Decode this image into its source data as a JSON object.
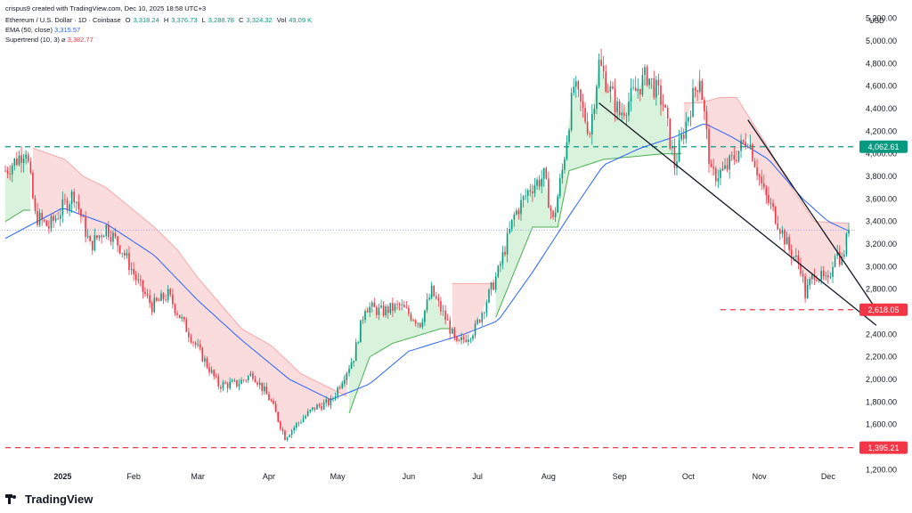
{
  "header": {
    "created_by": "crispus9 created with TradingView.com, Dec 10, 2025 18:58 UTC+3",
    "symbol": "Ethereum / U.S. Dollar · 1D · Coinbase",
    "open_label": "O",
    "open": "3,318.24",
    "high_label": "H",
    "high": "3,376.73",
    "low_label": "L",
    "low": "3,288.78",
    "close_label": "C",
    "close": "3,324.32",
    "vol_label": "Vol",
    "vol": "49.09 K",
    "ema_label": "EMA (50, close)",
    "ema_value": "3,315.57",
    "supertrend_label": "Supertrend (10, 3)",
    "supertrend_symbol": "⌀",
    "supertrend_value": "3,382.77"
  },
  "brand": {
    "name": "TradingView"
  },
  "colors": {
    "up": "#089981",
    "down": "#f23645",
    "ema": "#2962ff",
    "st_up_fill": "#d9f2dc",
    "st_down_fill": "#fbdcdc",
    "st_up_line": "#4caf50",
    "st_down_line": "#f7a7a7",
    "green_dashed": "#089981",
    "red_dashed": "#f23645",
    "trendline": "#131722",
    "last_price_line": "#6f8cff"
  },
  "chart_data": {
    "type": "candlestick",
    "currency_label": "USD",
    "ylim": [
      1100,
      5300
    ],
    "y_ticks": [
      1200,
      1400,
      1600,
      1800,
      2000,
      2200,
      2400,
      2600,
      2800,
      3000,
      3200,
      3400,
      3600,
      3800,
      4000,
      4200,
      4400,
      4600,
      4800,
      5000,
      5200
    ],
    "y_tick_labels": [
      "1,200.00",
      "1,400.00",
      "1,600.00",
      "1,800.00",
      "2,000.00",
      "2,200.00",
      "2,400.00",
      "2,600.00",
      "2,800.00",
      "3,000.00",
      "3,200.00",
      "3,400.00",
      "3,600.00",
      "3,800.00",
      "4,000.00",
      "4,200.00",
      "4,400.00",
      "4,600.00",
      "4,800.00",
      "5,000.00",
      "5,200.00"
    ],
    "x_labels": [
      {
        "date": "2025-01-01",
        "label": "2025"
      },
      {
        "date": "2025-02-01",
        "label": "Feb"
      },
      {
        "date": "2025-03-01",
        "label": "Mar"
      },
      {
        "date": "2025-04-01",
        "label": "Apr"
      },
      {
        "date": "2025-05-01",
        "label": "May"
      },
      {
        "date": "2025-06-01",
        "label": "Jun"
      },
      {
        "date": "2025-07-01",
        "label": "Jul"
      },
      {
        "date": "2025-08-01",
        "label": "Aug"
      },
      {
        "date": "2025-09-01",
        "label": "Sep"
      },
      {
        "date": "2025-10-01",
        "label": "Oct"
      },
      {
        "date": "2025-11-01",
        "label": "Nov"
      },
      {
        "date": "2025-12-01",
        "label": "Dec"
      }
    ],
    "first_date": "2024-12-07",
    "last_date": "2025-12-10",
    "close_path": [
      [
        "2024-12-07",
        3850
      ],
      [
        "2024-12-12",
        3950
      ],
      [
        "2024-12-16",
        4050
      ],
      [
        "2024-12-20",
        3450
      ],
      [
        "2024-12-26",
        3350
      ],
      [
        "2025-01-02",
        3550
      ],
      [
        "2025-01-06",
        3650
      ],
      [
        "2025-01-13",
        3180
      ],
      [
        "2025-01-20",
        3350
      ],
      [
        "2025-01-27",
        3150
      ],
      [
        "2025-02-03",
        2850
      ],
      [
        "2025-02-09",
        2650
      ],
      [
        "2025-02-16",
        2750
      ],
      [
        "2025-02-24",
        2450
      ],
      [
        "2025-03-03",
        2200
      ],
      [
        "2025-03-10",
        1950
      ],
      [
        "2025-03-18",
        1960
      ],
      [
        "2025-03-25",
        2050
      ],
      [
        "2025-04-02",
        1800
      ],
      [
        "2025-04-08",
        1490
      ],
      [
        "2025-04-14",
        1620
      ],
      [
        "2025-04-21",
        1750
      ],
      [
        "2025-04-28",
        1800
      ],
      [
        "2025-05-08",
        2200
      ],
      [
        "2025-05-13",
        2650
      ],
      [
        "2025-05-20",
        2600
      ],
      [
        "2025-05-28",
        2650
      ],
      [
        "2025-06-06",
        2500
      ],
      [
        "2025-06-11",
        2780
      ],
      [
        "2025-06-18",
        2500
      ],
      [
        "2025-06-22",
        2300
      ],
      [
        "2025-06-30",
        2450
      ],
      [
        "2025-07-10",
        2950
      ],
      [
        "2025-07-17",
        3450
      ],
      [
        "2025-07-24",
        3700
      ],
      [
        "2025-07-30",
        3800
      ],
      [
        "2025-08-03",
        3400
      ],
      [
        "2025-08-07",
        3850
      ],
      [
        "2025-08-12",
        4600
      ],
      [
        "2025-08-19",
        4200
      ],
      [
        "2025-08-23",
        4800
      ],
      [
        "2025-09-01",
        4350
      ],
      [
        "2025-09-13",
        4700
      ],
      [
        "2025-09-20",
        4450
      ],
      [
        "2025-09-25",
        3900
      ],
      [
        "2025-10-03",
        4500
      ],
      [
        "2025-10-06",
        4700
      ],
      [
        "2025-10-11",
        3800
      ],
      [
        "2025-10-17",
        3850
      ],
      [
        "2025-10-27",
        4150
      ],
      [
        "2025-11-03",
        3650
      ],
      [
        "2025-11-08",
        3450
      ],
      [
        "2025-11-14",
        3150
      ],
      [
        "2025-11-19",
        3000
      ],
      [
        "2025-11-21",
        2750
      ],
      [
        "2025-11-25",
        2950
      ],
      [
        "2025-12-01",
        2850
      ],
      [
        "2025-12-04",
        3150
      ],
      [
        "2025-12-07",
        3050
      ],
      [
        "2025-12-10",
        3324
      ]
    ],
    "series": [
      {
        "name": "Ethereum / U.S. Dollar",
        "kind": "candlestick",
        "last_close": 3324.32
      },
      {
        "name": "EMA (50, close)",
        "kind": "line",
        "points": [
          [
            "2024-12-07",
            3250
          ],
          [
            "2025-01-01",
            3520
          ],
          [
            "2025-01-20",
            3380
          ],
          [
            "2025-02-10",
            3100
          ],
          [
            "2025-03-01",
            2700
          ],
          [
            "2025-03-20",
            2350
          ],
          [
            "2025-04-10",
            2000
          ],
          [
            "2025-04-28",
            1820
          ],
          [
            "2025-05-15",
            1960
          ],
          [
            "2025-06-01",
            2250
          ],
          [
            "2025-06-25",
            2400
          ],
          [
            "2025-07-10",
            2520
          ],
          [
            "2025-07-25",
            2950
          ],
          [
            "2025-08-10",
            3450
          ],
          [
            "2025-08-25",
            3900
          ],
          [
            "2025-09-10",
            4050
          ],
          [
            "2025-09-25",
            4150
          ],
          [
            "2025-10-08",
            4270
          ],
          [
            "2025-10-20",
            4150
          ],
          [
            "2025-11-05",
            3950
          ],
          [
            "2025-11-20",
            3600
          ],
          [
            "2025-12-01",
            3400
          ],
          [
            "2025-12-10",
            3316
          ]
        ]
      },
      {
        "name": "Supertrend (10, 3)",
        "kind": "bands",
        "value": 3382.77,
        "segments": [
          {
            "dir": "up",
            "points": [
              [
                "2024-12-07",
                3400
              ],
              [
                "2024-12-15",
                3500
              ],
              [
                "2024-12-18",
                3500
              ]
            ]
          },
          {
            "dir": "down",
            "points": [
              [
                "2024-12-19",
                4050
              ],
              [
                "2025-01-02",
                3950
              ],
              [
                "2025-01-10",
                3800
              ],
              [
                "2025-01-20",
                3700
              ],
              [
                "2025-02-01",
                3500
              ],
              [
                "2025-02-10",
                3350
              ],
              [
                "2025-02-20",
                3150
              ],
              [
                "2025-03-01",
                2900
              ],
              [
                "2025-03-20",
                2450
              ],
              [
                "2025-04-02",
                2300
              ],
              [
                "2025-04-15",
                2050
              ],
              [
                "2025-05-05",
                1850
              ]
            ]
          },
          {
            "dir": "up",
            "points": [
              [
                "2025-05-06",
                1700
              ],
              [
                "2025-05-15",
                2200
              ],
              [
                "2025-05-25",
                2320
              ],
              [
                "2025-06-15",
                2450
              ],
              [
                "2025-06-19",
                2450
              ]
            ]
          },
          {
            "dir": "down",
            "points": [
              [
                "2025-06-20",
                2850
              ],
              [
                "2025-07-08",
                2850
              ]
            ]
          },
          {
            "dir": "up",
            "points": [
              [
                "2025-07-09",
                2550
              ],
              [
                "2025-07-18",
                3000
              ],
              [
                "2025-07-25",
                3350
              ],
              [
                "2025-08-05",
                3350
              ],
              [
                "2025-08-10",
                3850
              ],
              [
                "2025-08-25",
                3950
              ],
              [
                "2025-09-20",
                4000
              ],
              [
                "2025-09-28",
                4000
              ]
            ]
          },
          {
            "dir": "down",
            "points": [
              [
                "2025-09-29",
                4450
              ],
              [
                "2025-10-06",
                4450
              ],
              [
                "2025-10-15",
                4500
              ],
              [
                "2025-10-22",
                4500
              ],
              [
                "2025-11-05",
                4050
              ],
              [
                "2025-11-15",
                3700
              ],
              [
                "2025-11-25",
                3400
              ],
              [
                "2025-12-10",
                3383
              ]
            ]
          }
        ]
      }
    ],
    "horizontal_levels": [
      {
        "value": 4062.61,
        "label": "4,062.61",
        "color": "#089981",
        "style": "dashed",
        "from_date": "2024-12-07"
      },
      {
        "value": 2618.05,
        "label": "2,618.05",
        "color": "#f23645",
        "style": "dashed",
        "from_date": "2025-10-15"
      },
      {
        "value": 1395.21,
        "label": "1,395.21",
        "color": "#f23645",
        "style": "dashed",
        "from_date": "2024-12-07"
      }
    ],
    "trendlines": [
      {
        "from": [
          "2025-08-23",
          4450
        ],
        "to": [
          "2025-12-22",
          2480
        ]
      },
      {
        "from": [
          "2025-10-27",
          4300
        ],
        "to": [
          "2025-12-22",
          2620
        ]
      }
    ],
    "last_price_line": 3324.32,
    "grid": false,
    "legend": "top-left"
  }
}
